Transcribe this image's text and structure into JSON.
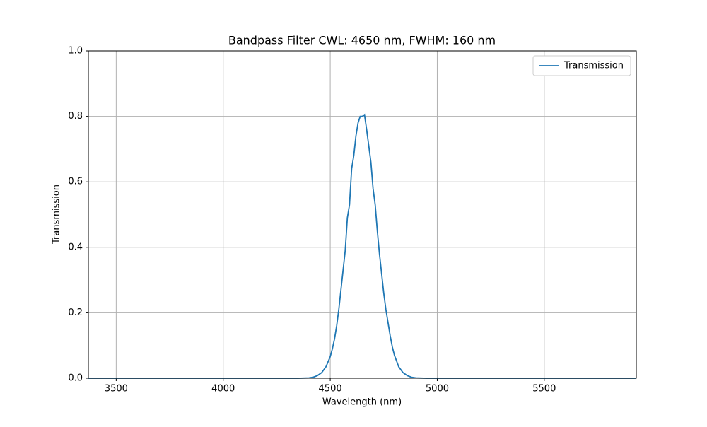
{
  "chart_data": {
    "type": "line",
    "title": "Bandpass Filter CWL: 4650 nm, FWHM: 160 nm",
    "x_label": "Wavelength (nm)",
    "y_label": "Transmission",
    "x": [
      3370,
      4300,
      4350,
      4400,
      4420,
      4440,
      4460,
      4480,
      4500,
      4510,
      4520,
      4530,
      4540,
      4550,
      4560,
      4570,
      4580,
      4590,
      4600,
      4610,
      4620,
      4630,
      4640,
      4650,
      4660,
      4670,
      4680,
      4690,
      4700,
      4710,
      4720,
      4730,
      4740,
      4750,
      4760,
      4770,
      4780,
      4790,
      4800,
      4820,
      4840,
      4860,
      4880,
      4900,
      4950,
      5000,
      5930
    ],
    "series": [
      {
        "name": "Transmission",
        "color": "#1f77b4",
        "values": [
          0,
          0,
          0,
          0.001,
          0.003,
          0.008,
          0.017,
          0.035,
          0.066,
          0.09,
          0.12,
          0.16,
          0.21,
          0.27,
          0.33,
          0.39,
          0.49,
          0.53,
          0.64,
          0.68,
          0.74,
          0.78,
          0.8,
          0.8,
          0.805,
          0.76,
          0.71,
          0.66,
          0.58,
          0.53,
          0.45,
          0.38,
          0.32,
          0.26,
          0.21,
          0.17,
          0.13,
          0.096,
          0.07,
          0.035,
          0.017,
          0.008,
          0.003,
          0.001,
          0,
          0,
          0
        ]
      }
    ],
    "xlim": [
      3370,
      5930
    ],
    "ylim": [
      0,
      1
    ],
    "xticks": [
      3500,
      4000,
      4500,
      5000,
      5500
    ],
    "yticks": [
      {
        "value": 0,
        "label": "0.0"
      },
      0.2,
      0.4,
      0.6,
      0.8,
      {
        "value": 1,
        "label": "1.0"
      }
    ],
    "grid": true,
    "legend": "upper right"
  }
}
